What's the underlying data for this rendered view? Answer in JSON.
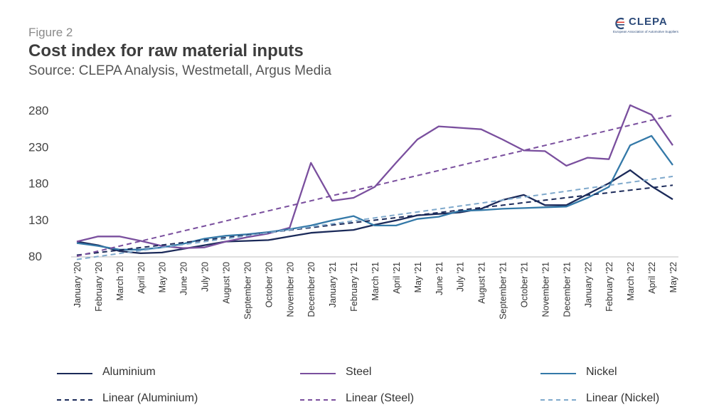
{
  "header": {
    "figure_label": "Figure 2",
    "title": "Cost index for raw material inputs",
    "subtitle": "Source: CLEPA Analysis, Westmetall, Argus Media"
  },
  "logo": {
    "name": "CLEPA",
    "tagline": "European Association of Automotive Suppliers",
    "icon": "clepa-logo-icon"
  },
  "chart_data": {
    "type": "line",
    "title": "Cost index for raw material inputs",
    "xlabel": "",
    "ylabel": "",
    "ylim": [
      80,
      280
    ],
    "yticks": [
      80,
      130,
      180,
      230,
      280
    ],
    "grid": false,
    "legend_position": "bottom",
    "categories": [
      "January '20",
      "February '20",
      "March '20",
      "April '20",
      "May '20",
      "June '20",
      "July '20",
      "August '20",
      "September '20",
      "October '20",
      "November '20",
      "December '20",
      "January '21",
      "February '21",
      "March '21",
      "April '21",
      "May '21",
      "June '21",
      "July '21",
      "August '21",
      "September '21",
      "October '21",
      "November '21",
      "December '21",
      "January '22",
      "February '22",
      "March '22",
      "April '22",
      "May '22"
    ],
    "series": [
      {
        "name": "Aluminium",
        "color": "#1b2a59",
        "style": "solid",
        "values": [
          100,
          95,
          87,
          84,
          85,
          90,
          95,
          100,
          101,
          102,
          107,
          112,
          114,
          116,
          123,
          129,
          136,
          138,
          140,
          145,
          157,
          164,
          150,
          150,
          165,
          180,
          198,
          176,
          158
        ]
      },
      {
        "name": "Steel",
        "color": "#7a4f9e",
        "style": "solid",
        "values": [
          100,
          107,
          107,
          101,
          94,
          91,
          92,
          100,
          106,
          111,
          119,
          208,
          156,
          160,
          175,
          208,
          240,
          258,
          256,
          254,
          240,
          225,
          224,
          204,
          215,
          213,
          287,
          274,
          232
        ]
      },
      {
        "name": "Nickel",
        "color": "#3479a8",
        "style": "solid",
        "values": [
          98,
          94,
          89,
          89,
          92,
          97,
          104,
          108,
          110,
          113,
          117,
          122,
          129,
          135,
          122,
          122,
          131,
          134,
          142,
          143,
          145,
          146,
          147,
          148,
          160,
          175,
          232,
          245,
          205
        ]
      },
      {
        "name": "Linear (Aluminium)",
        "color": "#1b2a59",
        "style": "dashed",
        "values": [
          81.5,
          84.9,
          88.3,
          91.8,
          95.2,
          98.6,
          102.0,
          105.5,
          108.9,
          112.3,
          115.7,
          119.1,
          122.6,
          126.0,
          129.4,
          132.8,
          136.2,
          139.7,
          143.1,
          146.5,
          149.9,
          153.4,
          156.8,
          160.2,
          163.6,
          167.0,
          170.5,
          173.9,
          177.3
        ]
      },
      {
        "name": "Linear (Steel)",
        "color": "#7a4f9e",
        "style": "dashed",
        "values": [
          80,
          86.9,
          93.8,
          100.7,
          107.6,
          114.5,
          121.4,
          128.3,
          135.2,
          142.1,
          149.0,
          155.9,
          162.9,
          169.8,
          176.7,
          183.6,
          190.5,
          197.4,
          204.3,
          211.2,
          218.1,
          225.0,
          231.9,
          238.8,
          245.7,
          252.6,
          259.5,
          266.4,
          273.3
        ]
      },
      {
        "name": "Linear (Nickel)",
        "color": "#7fa9cc",
        "style": "dashed",
        "values": [
          75.5,
          79.6,
          83.7,
          87.7,
          91.8,
          95.9,
          100.0,
          104.0,
          108.1,
          112.2,
          116.2,
          120.3,
          124.4,
          128.4,
          132.5,
          136.6,
          140.6,
          144.7,
          148.8,
          152.8,
          156.9,
          161.0,
          165.0,
          169.1,
          173.2,
          177.2,
          181.3,
          185.4,
          189.4
        ]
      }
    ]
  }
}
